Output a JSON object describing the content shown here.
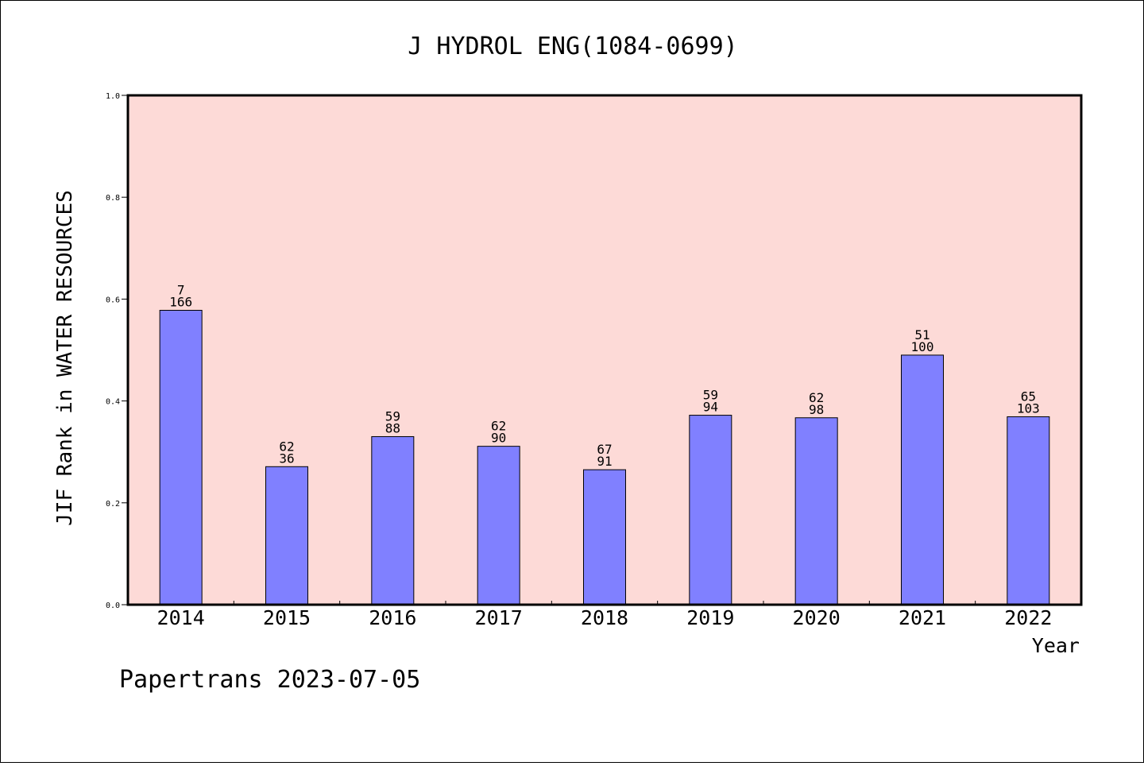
{
  "chart_data": {
    "type": "bar",
    "title": "J HYDROL ENG(1084-0699)",
    "xlabel": "Year",
    "ylabel": "JIF Rank in WATER RESOURCES",
    "ylim": [
      0.0,
      1.0
    ],
    "yticks": [
      "0.0",
      "0.2",
      "0.4",
      "0.6",
      "0.8",
      "1.0"
    ],
    "grid": false,
    "categories": [
      "2014",
      "2015",
      "2016",
      "2017",
      "2018",
      "2019",
      "2020",
      "2021",
      "2022"
    ],
    "values": [
      0.578,
      0.271,
      0.33,
      0.311,
      0.265,
      0.372,
      0.367,
      0.49,
      0.369
    ],
    "labels_top": [
      "7",
      "62",
      "59",
      "62",
      "67",
      "59",
      "62",
      "51",
      "65"
    ],
    "labels_bottom": [
      "166",
      "36",
      "88",
      "90",
      "91",
      "94",
      "98",
      "100",
      "103"
    ],
    "colors": {
      "bar": "#8080ff",
      "plot_bg": "#fddad7",
      "page_bg": "#ffffff",
      "axis": "#000000"
    }
  },
  "footer": "Papertrans 2023-07-05"
}
